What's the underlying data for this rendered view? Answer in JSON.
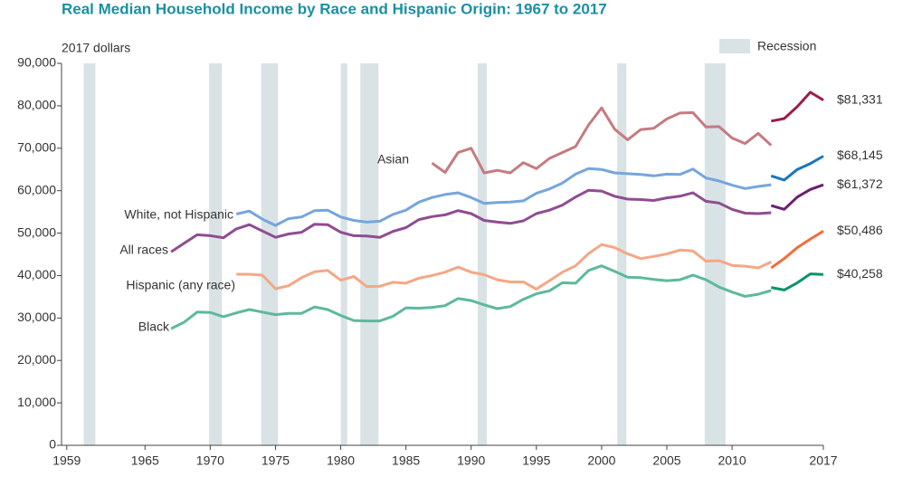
{
  "chart_data": {
    "type": "line",
    "title": "Real Median Household Income by Race and Hispanic Origin: 1967 to 2017",
    "y_label": "2017 dollars",
    "recession_label": "Recession",
    "recession_color": "#d9e3e6",
    "recessions": [
      [
        1960.3,
        1961.2
      ],
      [
        1969.9,
        1970.9
      ],
      [
        1973.9,
        1975.2
      ],
      [
        1980.0,
        1980.5
      ],
      [
        1981.5,
        1982.9
      ],
      [
        1990.5,
        1991.2
      ],
      [
        2001.2,
        2001.9
      ],
      [
        2007.9,
        2009.5
      ]
    ],
    "xlim": [
      1958.6,
      2017
    ],
    "xticks": [
      1959,
      1965,
      1970,
      1975,
      1980,
      1985,
      1990,
      1995,
      2000,
      2005,
      2010,
      2017
    ],
    "ylim": [
      0,
      90000
    ],
    "yticks": [
      0,
      {
        "value": 10000,
        "label": "10,000"
      },
      {
        "value": 20000,
        "label": "20,000"
      },
      {
        "value": 30000,
        "label": "30,000"
      },
      {
        "value": 40000,
        "label": "40,000"
      },
      {
        "value": 50000,
        "label": "50,000"
      },
      {
        "value": 60000,
        "label": "60,000"
      },
      {
        "value": 70000,
        "label": "70,000"
      },
      {
        "value": 80000,
        "label": "80,000"
      },
      {
        "value": 90000,
        "label": "90,000"
      }
    ],
    "x": [
      1967,
      1968,
      1969,
      1970,
      1971,
      1972,
      1973,
      1974,
      1975,
      1976,
      1977,
      1978,
      1979,
      1980,
      1981,
      1982,
      1983,
      1984,
      1985,
      1986,
      1987,
      1988,
      1989,
      1990,
      1991,
      1992,
      1993,
      1994,
      1995,
      1996,
      1997,
      1998,
      1999,
      2000,
      2001,
      2002,
      2003,
      2004,
      2005,
      2006,
      2007,
      2008,
      2009,
      2010,
      2011,
      2012,
      2013,
      2013,
      2013,
      2014,
      2015,
      2016,
      2017
    ],
    "series": [
      {
        "name": "Asian",
        "color": "#c57b80",
        "recent_color": "#9c1c4c",
        "values": [
          null,
          null,
          null,
          null,
          null,
          null,
          null,
          null,
          null,
          null,
          null,
          null,
          null,
          null,
          null,
          null,
          null,
          null,
          null,
          null,
          66500,
          64300,
          69000,
          70000,
          64200,
          64800,
          64200,
          66600,
          65200,
          67600,
          69000,
          70400,
          75500,
          79500,
          74500,
          72000,
          74400,
          74700,
          76900,
          78300,
          78400,
          75000,
          75100,
          72400,
          71100,
          73500,
          70700,
          null,
          76400,
          77000,
          79800,
          83200,
          81331
        ],
        "value_labels": [
          null,
          null,
          null,
          null,
          null,
          null,
          null,
          null,
          null,
          null,
          null,
          null,
          null,
          null,
          null,
          null,
          null,
          null,
          null,
          null,
          null,
          null,
          null,
          null,
          null,
          null,
          null,
          null,
          null,
          null,
          null,
          null,
          null,
          null,
          null,
          null,
          null,
          null,
          null,
          null,
          null,
          null,
          null,
          null,
          null,
          null,
          null,
          null,
          null,
          null,
          null,
          null,
          "$81,331"
        ]
      },
      {
        "name": "White, not Hispanic",
        "color": "#76a5dc",
        "recent_color": "#1a76bd",
        "values": [
          null,
          null,
          null,
          null,
          null,
          54500,
          55200,
          53300,
          51800,
          53400,
          53800,
          55300,
          55400,
          53800,
          53000,
          52600,
          52800,
          54400,
          55400,
          57300,
          58400,
          59100,
          59500,
          58400,
          57000,
          57200,
          57300,
          57600,
          59400,
          60400,
          61800,
          63900,
          65200,
          65000,
          64200,
          64000,
          63800,
          63500,
          63900,
          63800,
          65100,
          63000,
          62300,
          61300,
          60500,
          61000,
          61400,
          null,
          63500,
          62500,
          65000,
          66400,
          68145
        ],
        "value_labels": [
          null,
          null,
          null,
          null,
          null,
          null,
          null,
          null,
          null,
          null,
          null,
          null,
          null,
          null,
          null,
          null,
          null,
          null,
          null,
          null,
          null,
          null,
          null,
          null,
          null,
          null,
          null,
          null,
          null,
          null,
          null,
          null,
          null,
          null,
          null,
          null,
          null,
          null,
          null,
          null,
          null,
          null,
          null,
          null,
          null,
          null,
          null,
          null,
          null,
          null,
          null,
          null,
          "$68,145"
        ]
      },
      {
        "name": "All races",
        "color": "#8e4d91",
        "recent_color": "#6b1f70",
        "values": [
          45600,
          47600,
          49600,
          49400,
          48900,
          51000,
          52000,
          50500,
          49000,
          49800,
          50200,
          52100,
          52000,
          50200,
          49400,
          49300,
          49000,
          50400,
          51300,
          53200,
          53900,
          54300,
          55300,
          54600,
          53000,
          52600,
          52300,
          52900,
          54600,
          55400,
          56600,
          58500,
          60100,
          59900,
          58700,
          58000,
          57900,
          57700,
          58300,
          58700,
          59500,
          57500,
          57100,
          55600,
          54700,
          54600,
          54800,
          null,
          56500,
          55600,
          58500,
          60300,
          61372
        ],
        "value_labels": [
          null,
          null,
          null,
          null,
          null,
          null,
          null,
          null,
          null,
          null,
          null,
          null,
          null,
          null,
          null,
          null,
          null,
          null,
          null,
          null,
          null,
          null,
          null,
          null,
          null,
          null,
          null,
          null,
          null,
          null,
          null,
          null,
          null,
          null,
          null,
          null,
          null,
          null,
          null,
          null,
          null,
          null,
          null,
          null,
          null,
          null,
          null,
          null,
          null,
          null,
          null,
          null,
          "$61,372"
        ]
      },
      {
        "name": "Hispanic (any race)",
        "color": "#f5a785",
        "recent_color": "#f26d3b",
        "values": [
          null,
          null,
          null,
          null,
          null,
          40300,
          40300,
          40100,
          36900,
          37600,
          39500,
          40900,
          41200,
          38900,
          39800,
          37400,
          37500,
          38400,
          38200,
          39400,
          40000,
          40800,
          42000,
          40800,
          40200,
          39000,
          38500,
          38500,
          36800,
          38800,
          40800,
          42300,
          45200,
          47300,
          46600,
          45100,
          44000,
          44500,
          45100,
          46000,
          45800,
          43400,
          43500,
          42400,
          42200,
          41800,
          43200,
          null,
          41800,
          44000,
          46600,
          48600,
          50486
        ],
        "value_labels": [
          null,
          null,
          null,
          null,
          null,
          null,
          null,
          null,
          null,
          null,
          null,
          null,
          null,
          null,
          null,
          null,
          null,
          null,
          null,
          null,
          null,
          null,
          null,
          null,
          null,
          null,
          null,
          null,
          null,
          null,
          null,
          null,
          null,
          null,
          null,
          null,
          null,
          null,
          null,
          null,
          null,
          null,
          null,
          null,
          null,
          null,
          null,
          null,
          null,
          null,
          null,
          null,
          "$50,486"
        ]
      },
      {
        "name": "Black",
        "color": "#5db99b",
        "recent_color": "#0b9468",
        "values": [
          27500,
          29000,
          31400,
          31300,
          30300,
          31200,
          32000,
          31400,
          30800,
          31100,
          31100,
          32600,
          32000,
          30600,
          29400,
          29300,
          29300,
          30400,
          32400,
          32300,
          32500,
          32900,
          34600,
          34100,
          33100,
          32200,
          32700,
          34400,
          35700,
          36400,
          38300,
          38200,
          41200,
          42300,
          41000,
          39600,
          39500,
          39100,
          38800,
          39000,
          40100,
          39000,
          37300,
          36100,
          35100,
          35600,
          36500,
          null,
          37200,
          36600,
          38300,
          40400,
          40258
        ],
        "value_labels": [
          null,
          null,
          null,
          null,
          null,
          null,
          null,
          null,
          null,
          null,
          null,
          null,
          null,
          null,
          null,
          null,
          null,
          null,
          null,
          null,
          null,
          null,
          null,
          null,
          null,
          null,
          null,
          null,
          null,
          null,
          null,
          null,
          null,
          null,
          null,
          null,
          null,
          null,
          null,
          null,
          null,
          null,
          null,
          null,
          null,
          null,
          null,
          null,
          null,
          null,
          null,
          null,
          "$40,258"
        ]
      }
    ]
  }
}
